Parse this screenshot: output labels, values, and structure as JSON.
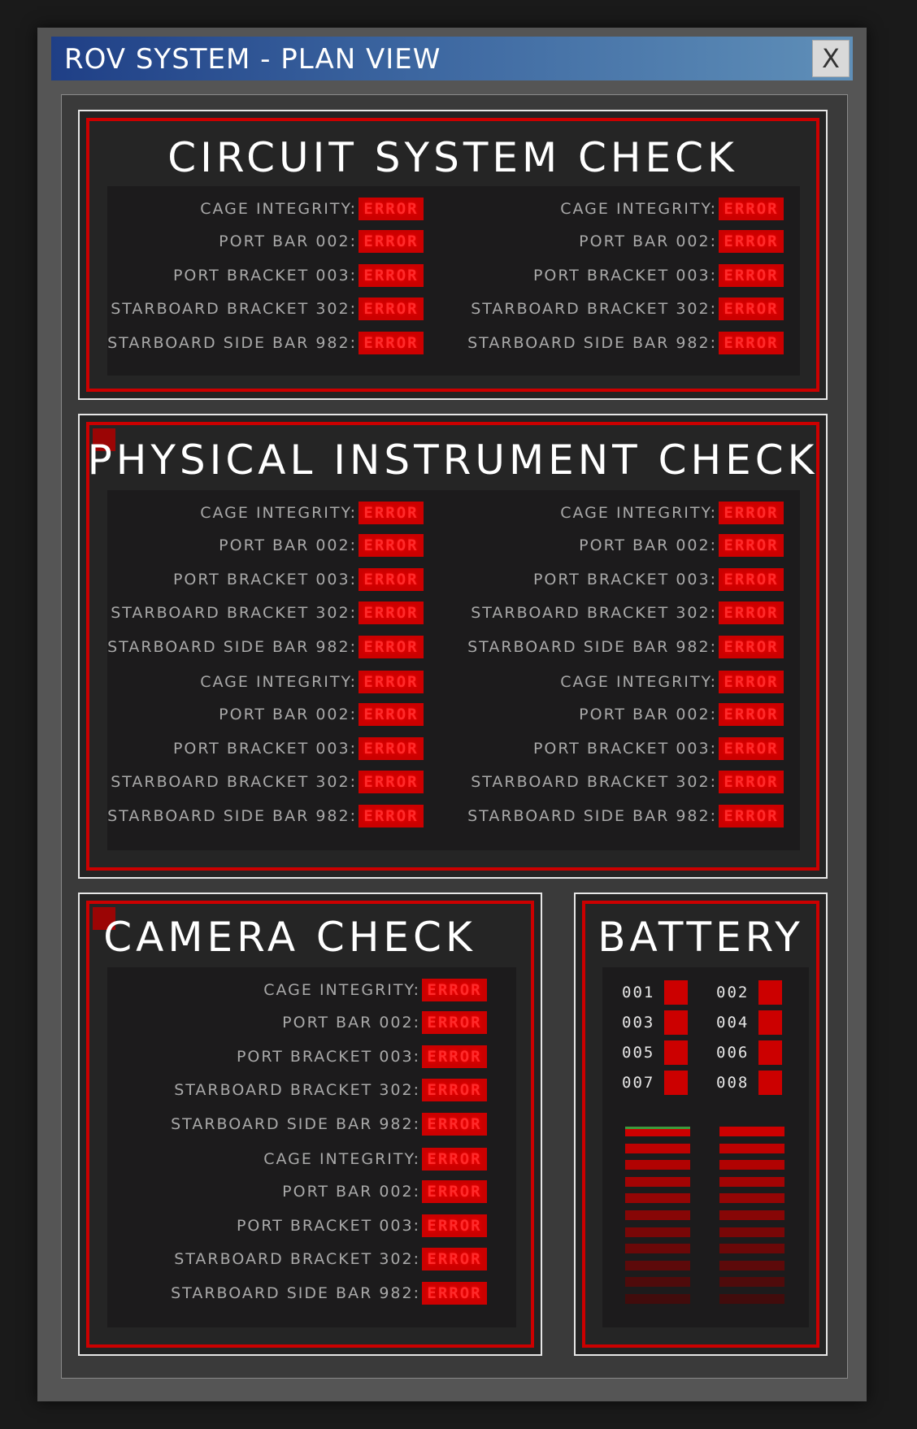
{
  "window": {
    "title": "ROV SYSTEM - PLAN VIEW",
    "close_label": "X"
  },
  "colors": {
    "error_fill": "#cc0000",
    "frame_red": "#cc0000",
    "titlebar_start": "#1f3f86",
    "titlebar_end": "#5f8fb8",
    "battery_top_indicator": "#3c9a3c"
  },
  "circuit": {
    "title": "CIRCUIT SYSTEM CHECK",
    "left": [
      {
        "label": "CAGE INTEGRITY:",
        "status": "ERROR"
      },
      {
        "label": "PORT BAR 002:",
        "status": "ERROR"
      },
      {
        "label": "PORT BRACKET 003:",
        "status": "ERROR"
      },
      {
        "label": "STARBOARD BRACKET 302:",
        "status": "ERROR"
      },
      {
        "label": "STARBOARD SIDE BAR 982:",
        "status": "ERROR"
      }
    ],
    "right": [
      {
        "label": "CAGE INTEGRITY:",
        "status": "ERROR"
      },
      {
        "label": "PORT BAR 002:",
        "status": "ERROR"
      },
      {
        "label": "PORT BRACKET 003:",
        "status": "ERROR"
      },
      {
        "label": "STARBOARD BRACKET 302:",
        "status": "ERROR"
      },
      {
        "label": "STARBOARD SIDE BAR 982:",
        "status": "ERROR"
      }
    ]
  },
  "physical": {
    "title": "PHYSICAL INSTRUMENT CHECK",
    "left": [
      {
        "label": "CAGE INTEGRITY:",
        "status": "ERROR"
      },
      {
        "label": "PORT BAR 002:",
        "status": "ERROR"
      },
      {
        "label": "PORT BRACKET 003:",
        "status": "ERROR"
      },
      {
        "label": "STARBOARD BRACKET 302:",
        "status": "ERROR"
      },
      {
        "label": "STARBOARD SIDE BAR 982:",
        "status": "ERROR"
      },
      {
        "label": "CAGE INTEGRITY:",
        "status": "ERROR"
      },
      {
        "label": "PORT BAR 002:",
        "status": "ERROR"
      },
      {
        "label": "PORT BRACKET 003:",
        "status": "ERROR"
      },
      {
        "label": "STARBOARD BRACKET 302:",
        "status": "ERROR"
      },
      {
        "label": "STARBOARD SIDE BAR 982:",
        "status": "ERROR"
      }
    ],
    "right": [
      {
        "label": "CAGE INTEGRITY:",
        "status": "ERROR"
      },
      {
        "label": "PORT BAR 002:",
        "status": "ERROR"
      },
      {
        "label": "PORT BRACKET 003:",
        "status": "ERROR"
      },
      {
        "label": "STARBOARD BRACKET 302:",
        "status": "ERROR"
      },
      {
        "label": "STARBOARD SIDE BAR 982:",
        "status": "ERROR"
      },
      {
        "label": "CAGE INTEGRITY:",
        "status": "ERROR"
      },
      {
        "label": "PORT BAR 002:",
        "status": "ERROR"
      },
      {
        "label": "PORT BRACKET 003:",
        "status": "ERROR"
      },
      {
        "label": "STARBOARD BRACKET 302:",
        "status": "ERROR"
      },
      {
        "label": "STARBOARD SIDE BAR 982:",
        "status": "ERROR"
      }
    ]
  },
  "camera": {
    "title": "CAMERA CHECK",
    "items": [
      {
        "label": "CAGE INTEGRITY:",
        "status": "ERROR"
      },
      {
        "label": "PORT BAR 002:",
        "status": "ERROR"
      },
      {
        "label": "PORT BRACKET 003:",
        "status": "ERROR"
      },
      {
        "label": "STARBOARD BRACKET 302:",
        "status": "ERROR"
      },
      {
        "label": "STARBOARD SIDE BAR 982:",
        "status": "ERROR"
      },
      {
        "label": "CAGE INTEGRITY:",
        "status": "ERROR"
      },
      {
        "label": "PORT BAR 002:",
        "status": "ERROR"
      },
      {
        "label": "PORT BRACKET 003:",
        "status": "ERROR"
      },
      {
        "label": "STARBOARD BRACKET 302:",
        "status": "ERROR"
      },
      {
        "label": "STARBOARD SIDE BAR 982:",
        "status": "ERROR"
      }
    ]
  },
  "battery": {
    "title": "BATTERY",
    "cells": [
      "001",
      "002",
      "003",
      "004",
      "005",
      "006",
      "007",
      "008"
    ],
    "gauge_segments": 11
  }
}
